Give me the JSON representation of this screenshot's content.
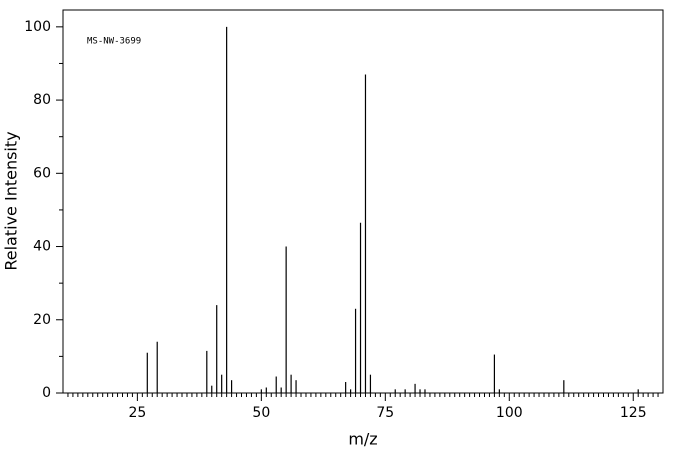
{
  "chart_data": {
    "type": "stem",
    "annotation": "MS-NW-3699",
    "xlabel": "m/z",
    "ylabel": "Relative Intensity",
    "color": "#000000",
    "x": [
      27,
      29,
      39,
      40,
      41,
      42,
      43,
      44,
      50,
      51,
      53,
      54,
      55,
      56,
      57,
      67,
      68,
      69,
      70,
      71,
      72,
      77,
      79,
      81,
      82,
      83,
      97,
      98,
      111,
      126
    ],
    "values": [
      11,
      14,
      11.5,
      2,
      24,
      5,
      100,
      3.5,
      1,
      1.5,
      4.5,
      1.5,
      40,
      5,
      3.5,
      3,
      1,
      23,
      46.5,
      87,
      5,
      1,
      1,
      2.5,
      1,
      1,
      10.5,
      1,
      3.5,
      1
    ],
    "xlim": [
      10,
      131
    ],
    "ylim": [
      0,
      104.6
    ],
    "xticks": [
      25,
      50,
      75,
      100,
      125
    ],
    "yticks": [
      0,
      20,
      40,
      60,
      80,
      100
    ],
    "yminorticks": [
      10,
      30,
      50,
      70,
      90
    ],
    "xminorticks": [
      11,
      12,
      13,
      14,
      15,
      16,
      17,
      18,
      19,
      20,
      21,
      22,
      23,
      24,
      26,
      27,
      28,
      29,
      30,
      31,
      32,
      33,
      34,
      35,
      36,
      37,
      38,
      39,
      40,
      41,
      42,
      43,
      44,
      45,
      46,
      47,
      48,
      49,
      51,
      52,
      53,
      54,
      55,
      56,
      57,
      58,
      59,
      60,
      61,
      62,
      63,
      64,
      65,
      66,
      67,
      68,
      69,
      70,
      71,
      72,
      73,
      74,
      76,
      77,
      78,
      79,
      80,
      81,
      82,
      83,
      84,
      85,
      86,
      87,
      88,
      89,
      90,
      91,
      92,
      93,
      94,
      95,
      96,
      97,
      98,
      99,
      101,
      102,
      103,
      104,
      105,
      106,
      107,
      108,
      109,
      110,
      111,
      112,
      113,
      114,
      115,
      116,
      117,
      118,
      119,
      120,
      121,
      122,
      123,
      124,
      126,
      127,
      128,
      129,
      130
    ]
  }
}
